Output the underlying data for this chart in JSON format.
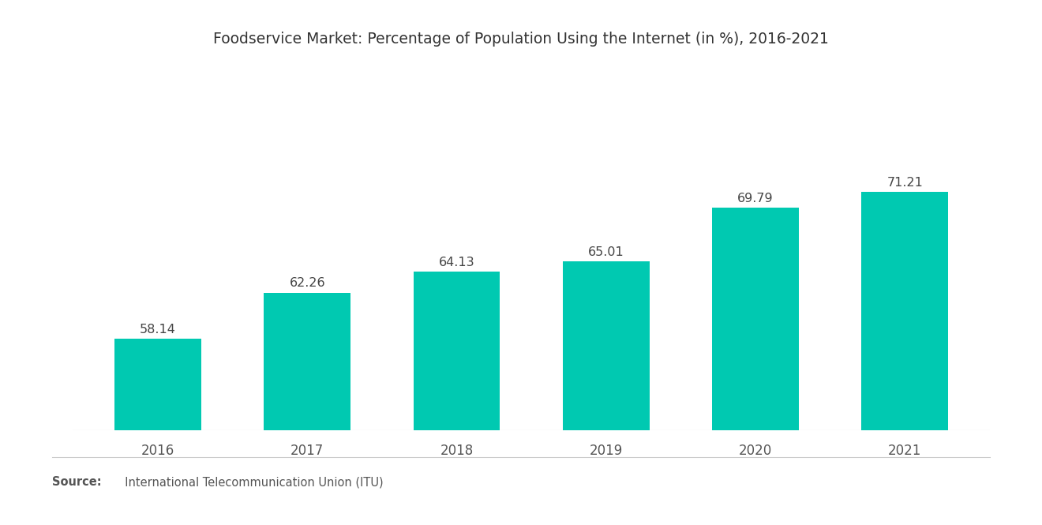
{
  "title": "Foodservice Market: Percentage of Population Using the Internet (in %), 2016-2021",
  "years": [
    "2016",
    "2017",
    "2018",
    "2019",
    "2020",
    "2021"
  ],
  "values": [
    58.14,
    62.26,
    64.13,
    65.01,
    69.79,
    71.21
  ],
  "bar_color": "#00C9B1",
  "background_color": "#FFFFFF",
  "title_fontsize": 13.5,
  "label_fontsize": 12,
  "value_fontsize": 11.5,
  "source_bold": "Source:",
  "source_rest": "  International Telecommunication Union (ITU)",
  "ylim_min": 50,
  "ylim_max": 78,
  "bar_width": 0.58
}
